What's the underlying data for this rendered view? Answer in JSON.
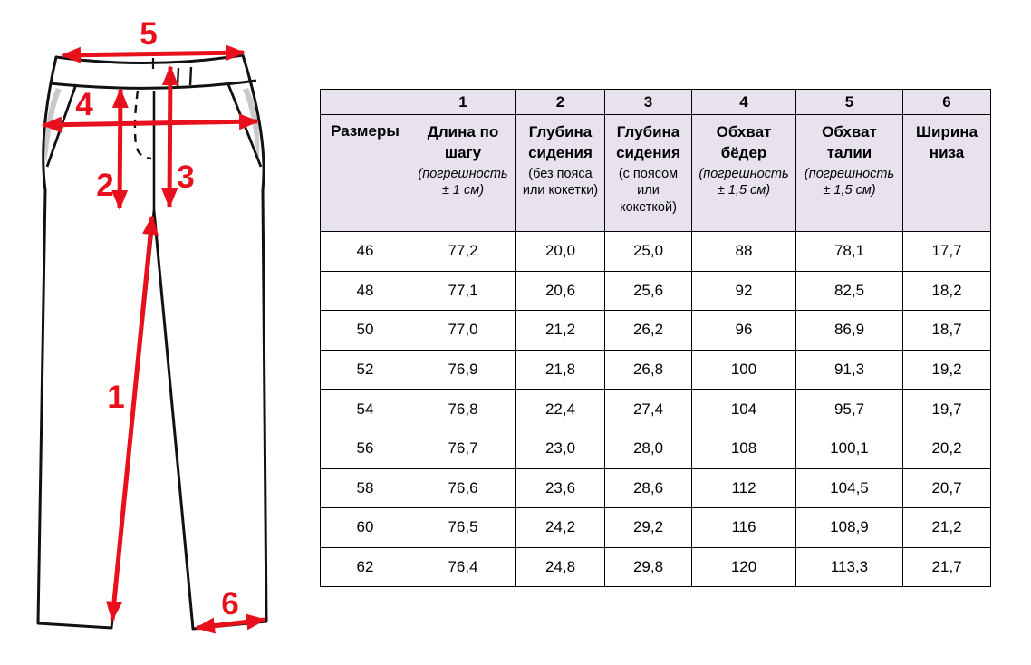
{
  "diagram": {
    "marker_labels": [
      "1",
      "2",
      "3",
      "4",
      "5",
      "6"
    ],
    "accent_red": "#e8101c",
    "outline_color": "#111111",
    "pocket_shade_color": "#c9c9c9"
  },
  "table": {
    "header_bg": "#e7e2ee",
    "corner_header": "Размеры",
    "columns": [
      {
        "num": "1",
        "title": "Длина по шагу",
        "note": "(погрешность ± 1 см)",
        "note_style": "italic"
      },
      {
        "num": "2",
        "title": "Глубина сидения",
        "note": "(без пояса или кокетки)",
        "note_style": "normal"
      },
      {
        "num": "3",
        "title": "Глубина сидения",
        "note": "(с поясом или кокеткой)",
        "note_style": "normal"
      },
      {
        "num": "4",
        "title": "Обхват бёдер",
        "note": "(погрешность ± 1,5 см)",
        "note_style": "italic"
      },
      {
        "num": "5",
        "title": "Обхват талии",
        "note": "(погрешность ± 1,5 см)",
        "note_style": "italic"
      },
      {
        "num": "6",
        "title": "Ширина низа",
        "note": "",
        "note_style": "normal"
      }
    ],
    "rows": [
      {
        "size": "46",
        "values": [
          "77,2",
          "20,0",
          "25,0",
          "88",
          "78,1",
          "17,7"
        ]
      },
      {
        "size": "48",
        "values": [
          "77,1",
          "20,6",
          "25,6",
          "92",
          "82,5",
          "18,2"
        ]
      },
      {
        "size": "50",
        "values": [
          "77,0",
          "21,2",
          "26,2",
          "96",
          "86,9",
          "18,7"
        ]
      },
      {
        "size": "52",
        "values": [
          "76,9",
          "21,8",
          "26,8",
          "100",
          "91,3",
          "19,2"
        ]
      },
      {
        "size": "54",
        "values": [
          "76,8",
          "22,4",
          "27,4",
          "104",
          "95,7",
          "19,7"
        ]
      },
      {
        "size": "56",
        "values": [
          "76,7",
          "23,0",
          "28,0",
          "108",
          "100,1",
          "20,2"
        ]
      },
      {
        "size": "58",
        "values": [
          "76,6",
          "23,6",
          "28,6",
          "112",
          "104,5",
          "20,7"
        ]
      },
      {
        "size": "60",
        "values": [
          "76,5",
          "24,2",
          "29,2",
          "116",
          "108,9",
          "21,2"
        ]
      },
      {
        "size": "62",
        "values": [
          "76,4",
          "24,8",
          "29,8",
          "120",
          "113,3",
          "21,7"
        ]
      }
    ]
  }
}
